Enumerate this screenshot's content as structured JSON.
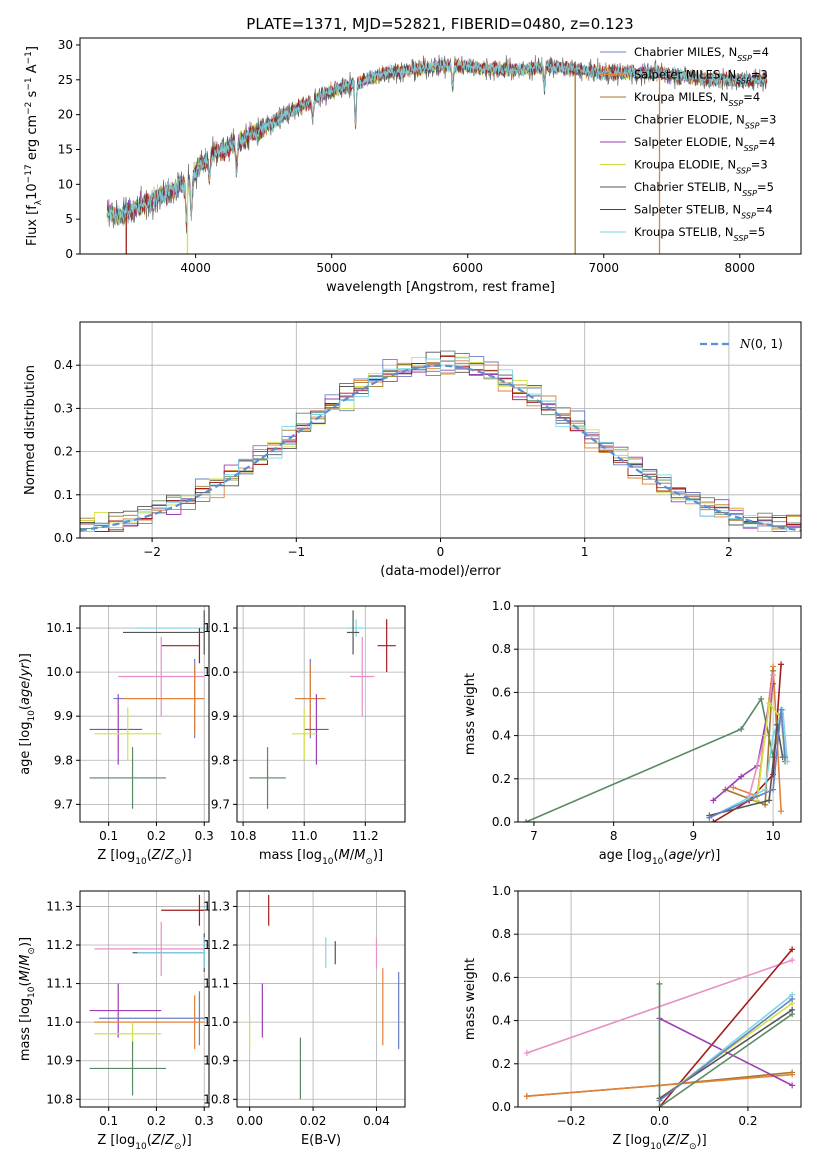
{
  "figure": {
    "title": "PLATE=1371, MJD=52821, FIBERID=0480, z=0.123"
  },
  "chart_data": [
    {
      "id": "spectrum",
      "type": "line",
      "xlabel": "wavelength [Angstrom, rest frame]",
      "ylabel": "Flux [f_λ 10^-17 erg cm^-2 s^-1 A^-1]",
      "xlim": [
        3150,
        8450
      ],
      "ylim": [
        0,
        31
      ],
      "xticks": [
        4000,
        5000,
        6000,
        7000,
        8000
      ],
      "yticks": [
        0,
        5,
        10,
        15,
        20,
        25,
        30
      ],
      "grid": false,
      "legend": "right",
      "continuum": {
        "x": [
          3350,
          3450,
          3550,
          3650,
          3750,
          3850,
          3950,
          4050,
          4150,
          4250,
          4350,
          4500,
          4650,
          4800,
          4950,
          5100,
          5250,
          5400,
          5600,
          5800,
          6000,
          6200,
          6400,
          6600,
          6800,
          7000,
          7200,
          7400,
          7600,
          7800,
          8000,
          8200
        ],
        "y": [
          6.0,
          5.5,
          6.5,
          7.5,
          8.5,
          9.5,
          10.5,
          13.0,
          14.5,
          15.5,
          16.5,
          18.0,
          20.0,
          21.5,
          23.0,
          24.0,
          25.0,
          26.0,
          26.5,
          27.0,
          27.0,
          26.5,
          26.5,
          27.0,
          26.5,
          26.0,
          26.0,
          26.0,
          25.5,
          25.0,
          25.0,
          25.0
        ]
      },
      "absorption": [
        {
          "x": 3933,
          "depth": 6
        },
        {
          "x": 3968,
          "depth": 5
        },
        {
          "x": 4101,
          "depth": 3
        },
        {
          "x": 4300,
          "depth": 4
        },
        {
          "x": 4861,
          "depth": 3
        },
        {
          "x": 5175,
          "depth": 6
        },
        {
          "x": 5890,
          "depth": 3
        },
        {
          "x": 6563,
          "depth": 3
        }
      ],
      "series": [
        {
          "name": "Chabrier MILES",
          "nssp": "4",
          "color": "#6a7fc5"
        },
        {
          "name": "Salpeter MILES",
          "nssp": "3",
          "color": "#e0823a"
        },
        {
          "name": "Kroupa MILES",
          "nssp": "4",
          "color": "#a5792c"
        },
        {
          "name": "Chabrier ELODIE",
          "nssp": "3",
          "color": "#5a8a63"
        },
        {
          "name": "Salpeter ELODIE",
          "nssp": "4",
          "color": "#9b3fb2"
        },
        {
          "name": "Kroupa ELODIE",
          "nssp": "3",
          "color": "#d4e04a"
        },
        {
          "name": "Chabrier STELIB",
          "nssp": "5",
          "color": "#555555"
        },
        {
          "name": "Salpeter STELIB",
          "nssp": "4",
          "color": "#a11d1d"
        },
        {
          "name": "Kroupa STELIB",
          "nssp": "5",
          "color": "#7dd6e6"
        }
      ],
      "drops": [
        {
          "x": 3490,
          "color": "#a11d1d"
        },
        {
          "x": 3940,
          "color": "#d4e04a"
        },
        {
          "x": 6790,
          "color": "#a5792c"
        },
        {
          "x": 7410,
          "color": "#e0823a"
        }
      ]
    },
    {
      "id": "residuals",
      "type": "histogram",
      "xlabel": "(data-model)/error",
      "ylabel": "Normed distribution",
      "xlim": [
        -2.5,
        2.5
      ],
      "ylim": [
        0,
        0.5
      ],
      "xticks": [
        -2,
        -1,
        0,
        1,
        2
      ],
      "xticklabels": [
        "−2",
        "−1",
        "0",
        "1",
        "2"
      ],
      "yticks": [
        0,
        0.1,
        0.2,
        0.3,
        0.4
      ],
      "grid": true,
      "bin_width": 0.1,
      "legend": "top-right",
      "reference_label": "N(0, 1)",
      "reference_color": "#5b8fd4"
    },
    {
      "id": "age-vs-Z",
      "type": "errorbar",
      "xlabel": "Z [log10(Z/Z⊙)]",
      "ylabel": "age [log10(age/yr)]",
      "xlim": [
        0.04,
        0.31
      ],
      "ylim": [
        9.66,
        10.15
      ],
      "xticks": [
        0.1,
        0.2,
        0.3
      ],
      "yticks": [
        9.7,
        9.8,
        9.9,
        10.0,
        10.1
      ],
      "grid": true,
      "points": [
        {
          "x": 0.3,
          "y": 10.1,
          "xerr": 0.0,
          "yerr": 0.01,
          "color": "#7dd6e6",
          "xlo": 0.15,
          "xhi": 0.3
        },
        {
          "x": 0.3,
          "y": 10.09,
          "xerr": 0.0,
          "yerr": 0.05,
          "color": "#555555",
          "xlo": 0.13,
          "xhi": 0.3
        },
        {
          "x": 0.29,
          "y": 10.06,
          "xerr": 0.0,
          "yerr": 0.04,
          "color": "#a11d1d",
          "xlo": 0.21,
          "xhi": 0.29
        },
        {
          "x": 0.21,
          "y": 9.99,
          "xerr": 0.09,
          "yerr": 0.09,
          "color": "#e88fc6",
          "xlo": 0.12,
          "xhi": 0.3
        },
        {
          "x": 0.28,
          "y": 9.94,
          "xerr": 0.0,
          "yerr": 0.09,
          "color": "#6a7fc5",
          "xlo": 0.11,
          "xhi": 0.3
        },
        {
          "x": 0.28,
          "y": 9.94,
          "xerr": 0.0,
          "yerr": 0.08,
          "color": "#e0823a",
          "xlo": 0.13,
          "xhi": 0.3
        },
        {
          "x": 0.12,
          "y": 9.87,
          "xerr": 0.06,
          "yerr": 0.08,
          "color": "#9b3fb2",
          "xlo": 0.06,
          "xhi": 0.17
        },
        {
          "x": 0.14,
          "y": 9.86,
          "xerr": 0.07,
          "yerr": 0.06,
          "color": "#d4e04a",
          "xlo": 0.07,
          "xhi": 0.21
        },
        {
          "x": 0.15,
          "y": 9.76,
          "xerr": 0.08,
          "yerr": 0.07,
          "color": "#5a8a63",
          "xlo": 0.06,
          "xhi": 0.22
        }
      ]
    },
    {
      "id": "age-vs-mass",
      "type": "errorbar",
      "xlabel": "mass [log10(M/M⊙)]",
      "ylabel": "",
      "xlim": [
        10.78,
        11.33
      ],
      "ylim": [
        9.66,
        10.15
      ],
      "xticks": [
        10.8,
        11.0,
        11.2
      ],
      "yticks": [
        9.7,
        9.8,
        9.9,
        10.0,
        10.1
      ],
      "grid": true,
      "points": [
        {
          "x": 11.17,
          "y": 10.1,
          "xerr": 0.03,
          "yerr": 0.02,
          "color": "#7dd6e6"
        },
        {
          "x": 11.16,
          "y": 10.09,
          "xerr": 0.02,
          "yerr": 0.05,
          "color": "#555555"
        },
        {
          "x": 11.27,
          "y": 10.06,
          "xerr": 0.03,
          "yerr": 0.06,
          "color": "#a11d1d"
        },
        {
          "x": 11.19,
          "y": 9.99,
          "xerr": 0.04,
          "yerr": 0.09,
          "color": "#e88fc6"
        },
        {
          "x": 11.02,
          "y": 9.94,
          "xerr": 0.05,
          "yerr": 0.09,
          "color": "#6a7fc5"
        },
        {
          "x": 11.02,
          "y": 9.94,
          "xerr": 0.05,
          "yerr": 0.08,
          "color": "#e0823a"
        },
        {
          "x": 11.04,
          "y": 9.87,
          "xerr": 0.04,
          "yerr": 0.08,
          "color": "#9b3fb2"
        },
        {
          "x": 11.0,
          "y": 9.86,
          "xerr": 0.04,
          "yerr": 0.06,
          "color": "#d4e04a"
        },
        {
          "x": 10.88,
          "y": 9.76,
          "xerr": 0.06,
          "yerr": 0.07,
          "color": "#5a8a63"
        }
      ]
    },
    {
      "id": "massweight-vs-age",
      "type": "line",
      "xlabel": "age [log10(age/yr)]",
      "ylabel": "mass weight",
      "xlim": [
        6.8,
        10.35
      ],
      "ylim": [
        0,
        1.0
      ],
      "xticks": [
        7,
        8,
        9,
        10
      ],
      "yticks": [
        0,
        0.2,
        0.4,
        0.6,
        0.8,
        1.0
      ],
      "grid": true,
      "series": [
        {
          "color": "#5a8a63",
          "x": [
            6.9,
            9.6,
            9.85,
            10.0,
            10.1,
            10.15
          ],
          "y": [
            0.0,
            0.43,
            0.57,
            0.3,
            0.5,
            0.28
          ]
        },
        {
          "color": "#a11d1d",
          "x": [
            9.25,
            9.7,
            10.0,
            10.1
          ],
          "y": [
            0.0,
            0.1,
            0.22,
            0.73
          ]
        },
        {
          "color": "#e0823a",
          "x": [
            9.5,
            9.8,
            10.0,
            10.1
          ],
          "y": [
            0.16,
            0.12,
            0.72,
            0.05
          ]
        },
        {
          "color": "#a5792c",
          "x": [
            9.4,
            9.9,
            10.0
          ],
          "y": [
            0.15,
            0.08,
            0.7
          ]
        },
        {
          "color": "#9b3fb2",
          "x": [
            9.25,
            9.6,
            9.8,
            10.0
          ],
          "y": [
            0.1,
            0.21,
            0.26,
            0.64
          ]
        },
        {
          "color": "#e88fc6",
          "x": [
            9.7,
            9.9,
            10.0
          ],
          "y": [
            0.12,
            0.4,
            0.68
          ]
        },
        {
          "color": "#d4e04a",
          "x": [
            9.8,
            9.95,
            10.1,
            10.15
          ],
          "y": [
            0.1,
            0.55,
            0.48,
            0.3
          ]
        },
        {
          "color": "#7dd6e6",
          "x": [
            9.2,
            9.9,
            10.0,
            10.12,
            10.18
          ],
          "y": [
            0.02,
            0.15,
            0.4,
            0.52,
            0.28
          ]
        },
        {
          "color": "#555555",
          "x": [
            9.2,
            9.95,
            10.05,
            10.12
          ],
          "y": [
            0.03,
            0.1,
            0.45,
            0.3
          ]
        },
        {
          "color": "#6a7fc5",
          "x": [
            9.2,
            10.0,
            10.1,
            10.15
          ],
          "y": [
            0.02,
            0.15,
            0.52,
            0.3
          ]
        }
      ]
    },
    {
      "id": "mass-vs-Z",
      "type": "errorbar",
      "xlabel": "Z [log10(Z/Z⊙)]",
      "ylabel": "mass [log10(M/M⊙)]",
      "xlim": [
        0.04,
        0.31
      ],
      "ylim": [
        10.78,
        11.34
      ],
      "xticks": [
        0.1,
        0.2,
        0.3
      ],
      "yticks": [
        10.8,
        10.9,
        11.0,
        11.1,
        11.2,
        11.3
      ],
      "grid": true,
      "points": [
        {
          "x": 0.29,
          "y": 11.29,
          "xerr": 0.0,
          "yerr": 0.04,
          "color": "#a11d1d",
          "xlo": 0.21,
          "xhi": 0.3
        },
        {
          "x": 0.3,
          "y": 11.18,
          "xerr": 0.0,
          "yerr": 0.05,
          "color": "#555555",
          "xlo": 0.15,
          "xhi": 0.3
        },
        {
          "x": 0.3,
          "y": 11.18,
          "xerr": 0.0,
          "yerr": 0.04,
          "color": "#7dd6e6",
          "xlo": 0.16,
          "xhi": 0.3
        },
        {
          "x": 0.21,
          "y": 11.19,
          "xerr": 0.09,
          "yerr": 0.07,
          "color": "#e88fc6",
          "xlo": 0.07,
          "xhi": 0.3
        },
        {
          "x": 0.12,
          "y": 11.03,
          "xerr": 0.06,
          "yerr": 0.07,
          "color": "#9b3fb2",
          "xlo": 0.06,
          "xhi": 0.21
        },
        {
          "x": 0.29,
          "y": 11.01,
          "xerr": 0.0,
          "yerr": 0.07,
          "color": "#6a7fc5",
          "xlo": 0.08,
          "xhi": 0.3
        },
        {
          "x": 0.28,
          "y": 11.0,
          "xerr": 0.0,
          "yerr": 0.07,
          "color": "#e0823a",
          "xlo": 0.07,
          "xhi": 0.3
        },
        {
          "x": 0.15,
          "y": 10.97,
          "xerr": 0.07,
          "yerr": 0.03,
          "color": "#d4e04a",
          "xlo": 0.07,
          "xhi": 0.21
        },
        {
          "x": 0.15,
          "y": 10.88,
          "xerr": 0.08,
          "yerr": 0.07,
          "color": "#5a8a63",
          "xlo": 0.06,
          "xhi": 0.22
        }
      ]
    },
    {
      "id": "mass-vs-ebv",
      "type": "errorbar",
      "xlabel": "E(B-V)",
      "ylabel": "",
      "xlim": [
        -0.004,
        0.049
      ],
      "ylim": [
        10.78,
        11.34
      ],
      "xticks": [
        0.0,
        0.02,
        0.04
      ],
      "yticks": [
        10.8,
        10.9,
        11.0,
        11.1,
        11.2,
        11.3
      ],
      "grid": true,
      "points": [
        {
          "x": 0.006,
          "y": 11.29,
          "yerr": 0.04,
          "color": "#a11d1d"
        },
        {
          "x": 0.027,
          "y": 11.18,
          "yerr": 0.03,
          "color": "#555555"
        },
        {
          "x": 0.024,
          "y": 11.18,
          "yerr": 0.04,
          "color": "#7dd6e6"
        },
        {
          "x": 0.04,
          "y": 11.18,
          "yerr": 0.04,
          "color": "#e88fc6"
        },
        {
          "x": 0.004,
          "y": 11.03,
          "yerr": 0.07,
          "color": "#9b3fb2"
        },
        {
          "x": 0.047,
          "y": 11.03,
          "yerr": 0.1,
          "color": "#6a7fc5"
        },
        {
          "x": 0.042,
          "y": 11.04,
          "yerr": 0.1,
          "color": "#e0823a"
        },
        {
          "x": 0.0,
          "y": 10.97,
          "yerr": 0.04,
          "color": "#d4e04a"
        },
        {
          "x": 0.016,
          "y": 10.88,
          "yerr": 0.08,
          "color": "#5a8a63"
        }
      ]
    },
    {
      "id": "massweight-vs-Z",
      "type": "line",
      "xlabel": "Z [log10(Z/Z⊙)]",
      "ylabel": "mass weight",
      "xlim": [
        -0.32,
        0.32
      ],
      "ylim": [
        0,
        1.0
      ],
      "xticks": [
        -0.2,
        0.0,
        0.2
      ],
      "xticklabels": [
        "−0.2",
        "0.0",
        "0.2"
      ],
      "yticks": [
        0,
        0.2,
        0.4,
        0.6,
        0.8,
        1.0
      ],
      "grid": true,
      "series": [
        {
          "color": "#e88fc6",
          "x": [
            -0.3,
            0.3
          ],
          "y": [
            0.25,
            0.68
          ]
        },
        {
          "color": "#a5792c",
          "x": [
            -0.3,
            0.0,
            0.3
          ],
          "y": [
            0.05,
            0.1,
            0.16
          ]
        },
        {
          "color": "#e0823a",
          "x": [
            -0.3,
            0.0,
            0.3
          ],
          "y": [
            0.05,
            0.1,
            0.15
          ]
        },
        {
          "color": "#a11d1d",
          "x": [
            0.0,
            0.3
          ],
          "y": [
            0.0,
            0.73
          ]
        },
        {
          "color": "#9b3fb2",
          "x": [
            0.0,
            0.3
          ],
          "y": [
            0.41,
            0.1
          ]
        },
        {
          "color": "#5a8a63",
          "x": [
            0.0,
            0.0,
            0.3
          ],
          "y": [
            0.57,
            0.0,
            0.43
          ]
        },
        {
          "color": "#7dd6e6",
          "x": [
            0.0,
            0.3
          ],
          "y": [
            0.03,
            0.52
          ]
        },
        {
          "color": "#d4e04a",
          "x": [
            0.0,
            0.3
          ],
          "y": [
            0.04,
            0.48
          ]
        },
        {
          "color": "#555555",
          "x": [
            0.0,
            0.3
          ],
          "y": [
            0.04,
            0.45
          ]
        },
        {
          "color": "#6a7fc5",
          "x": [
            0.0,
            0.3
          ],
          "y": [
            0.03,
            0.5
          ]
        }
      ]
    }
  ]
}
